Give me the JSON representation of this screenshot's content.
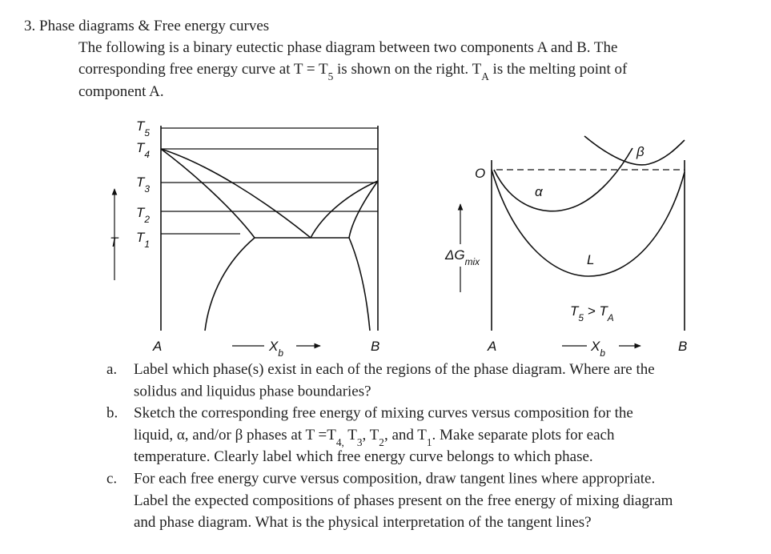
{
  "title": "3. Phase diagrams & Free energy curves",
  "intro": [
    [
      "The following is a binary eutectic phase diagram between two components A and B. The"
    ],
    [
      "corresponding free energy curve at T = T",
      {
        "sub": "5"
      },
      " is shown on the right. T",
      {
        "sub": "A"
      },
      " is the melting point of"
    ],
    [
      "component A."
    ]
  ],
  "phase_diagram": {
    "temperatures": [
      [
        "T",
        {
          "sub": "5"
        }
      ],
      [
        "T",
        {
          "sub": "4"
        }
      ],
      [
        "T",
        {
          "sub": "3"
        }
      ],
      [
        "T",
        {
          "sub": "2"
        }
      ],
      [
        "T",
        {
          "sub": "1"
        }
      ]
    ],
    "y_label": [
      "T"
    ],
    "left_end": [
      "A"
    ],
    "right_end": [
      "B"
    ],
    "x_label": [
      "X",
      {
        "sub": "b"
      }
    ]
  },
  "free_energy_diagram": {
    "origin": [
      "O"
    ],
    "alpha": [
      "α"
    ],
    "beta": [
      "β"
    ],
    "liquid": [
      "L"
    ],
    "y_label": [
      "ΔG",
      {
        "sub": "mix"
      }
    ],
    "condition": [
      "T",
      {
        "sub": "5"
      },
      " > T",
      {
        "sub": "A"
      }
    ],
    "left_end": [
      "A"
    ],
    "right_end": [
      "B"
    ],
    "x_label": [
      "X",
      {
        "sub": "b"
      }
    ]
  },
  "questions": [
    {
      "letter": "a.",
      "lines": [
        [
          "Label which phase(s) exist in each of the regions of the phase diagram. Where are the"
        ],
        [
          "solidus and liquidus phase boundaries?"
        ]
      ]
    },
    {
      "letter": "b.",
      "lines": [
        [
          "Sketch the corresponding free energy of mixing curves versus composition for the"
        ],
        [
          "liquid, α, and/or β phases at T =T",
          {
            "sub": "4,"
          },
          " T",
          {
            "sub": "3"
          },
          ", T",
          {
            "sub": "2"
          },
          ", and T",
          {
            "sub": "1"
          },
          ". Make separate plots for each"
        ],
        [
          "temperature. Clearly label which free energy curve belongs to which phase."
        ]
      ]
    },
    {
      "letter": "c.",
      "lines": [
        [
          "For each free energy curve versus composition, draw tangent lines where appropriate."
        ],
        [
          "Label the expected compositions of phases present on the free energy of mixing diagram"
        ],
        [
          "and phase diagram. What is the physical interpretation of the tangent lines?"
        ]
      ]
    }
  ]
}
